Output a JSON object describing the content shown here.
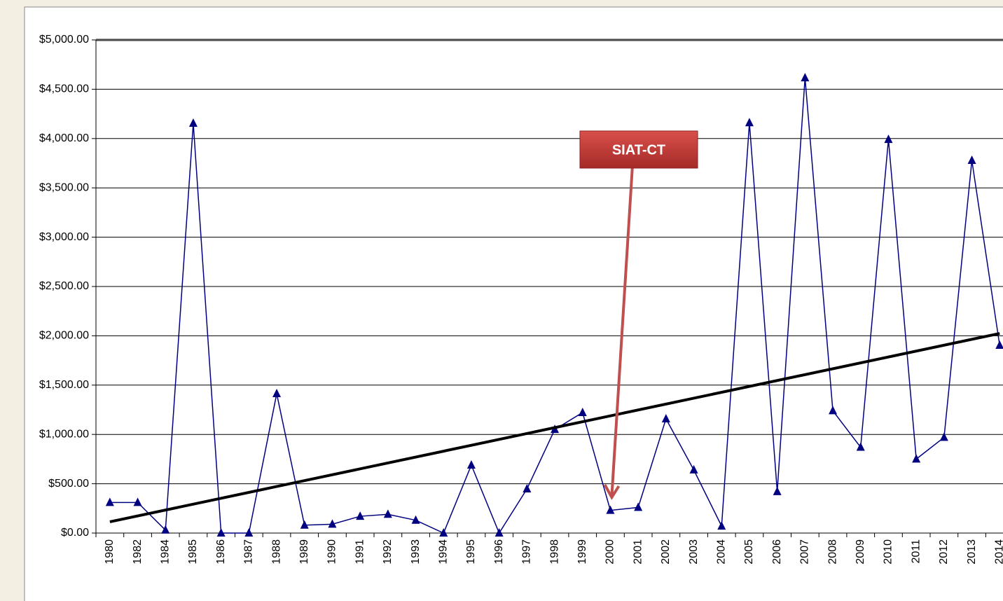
{
  "chart_data": {
    "type": "line",
    "categories": [
      "1980",
      "1982",
      "1984",
      "1985",
      "1986",
      "1987",
      "1988",
      "1989",
      "1990",
      "1991",
      "1992",
      "1993",
      "1994",
      "1995",
      "1996",
      "1997",
      "1998",
      "1999",
      "2000",
      "2001",
      "2002",
      "2003",
      "2004",
      "2005",
      "2006",
      "2007",
      "2008",
      "2009",
      "2010",
      "2011",
      "2012",
      "2013",
      "2014"
    ],
    "series": [
      {
        "color": "#000080",
        "values": [
          310,
          310,
          30,
          4155,
          0,
          0,
          1413,
          80,
          90,
          170,
          190,
          130,
          0,
          689,
          0,
          447,
          1050,
          1222,
          230,
          260,
          1158,
          640,
          70,
          4160,
          420,
          4616,
          1240,
          870,
          3991,
          750,
          970,
          3778,
          1903
        ]
      }
    ],
    "trend_line": {
      "color": "#000000",
      "values": [
        114,
        2024
      ]
    },
    "ylim": [
      0,
      5000
    ],
    "yticks": [
      {
        "value": 0,
        "label": "$0.00"
      },
      {
        "value": 500,
        "label": "$500.00"
      },
      {
        "value": 1000,
        "label": "$1,000.00"
      },
      {
        "value": 1500,
        "label": "$1,500.00"
      },
      {
        "value": 2000,
        "label": "$2,000.00"
      },
      {
        "value": 2500,
        "label": "$2,500.00"
      },
      {
        "value": 3000,
        "label": "$3,000.00"
      },
      {
        "value": 3500,
        "label": "$3,500.00"
      },
      {
        "value": 4000,
        "label": "$4,000.00"
      },
      {
        "value": 4500,
        "label": "$4,500.00"
      },
      {
        "value": 5000,
        "label": "$5,000.00"
      }
    ],
    "grid": true,
    "annotation": {
      "text": "SIAT-CT",
      "category_index": 18
    }
  }
}
